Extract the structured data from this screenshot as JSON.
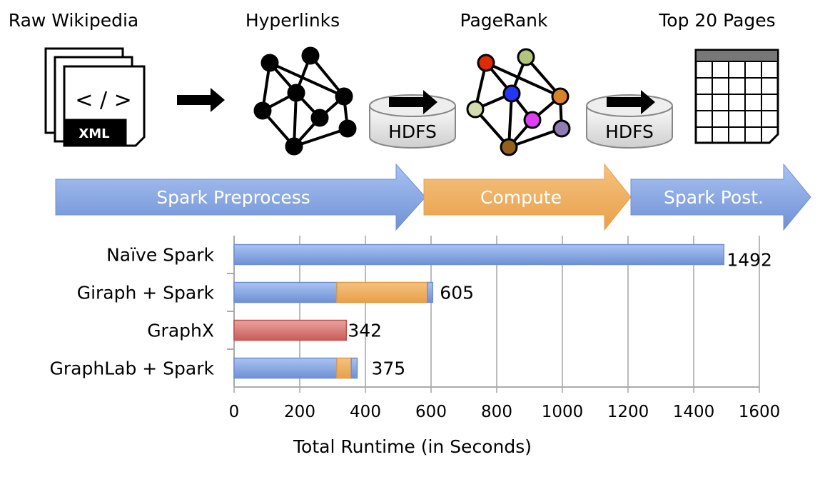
{
  "stages": {
    "raw": {
      "title": "Raw Wikipedia",
      "tag": "XML",
      "code": "< / >"
    },
    "links": {
      "title": "Hyperlinks"
    },
    "pagerank": {
      "title": "PageRank"
    },
    "top": {
      "title": "Top 20 Pages"
    },
    "hdfs1": "HDFS",
    "hdfs2": "HDFS"
  },
  "pipeline": [
    {
      "label": "Spark Preprocess",
      "color": "#7f9fd9"
    },
    {
      "label": "Compute",
      "color": "#eea856"
    },
    {
      "label": "Spark Post.",
      "color": "#7f9fd9"
    }
  ],
  "pagerank_node_colors": [
    "#e02a00",
    "#b3c57a",
    "#2436f8",
    "#d2dcad",
    "#d9822a",
    "#df3ef2",
    "#8f7cb0",
    "#93601d"
  ],
  "chart_data": {
    "type": "bar",
    "stacked": true,
    "orientation": "horizontal",
    "categories": [
      "Naïve Spark",
      "Giraph + Spark",
      "GraphX",
      "GraphLab + Spark"
    ],
    "segments": [
      [
        {
          "value": 1492,
          "color": "#7f9fd9"
        }
      ],
      [
        {
          "value": 313,
          "color": "#7f9fd9"
        },
        {
          "value": 276,
          "color": "#eea856"
        },
        {
          "value": 16,
          "color": "#7f9fd9"
        }
      ],
      [
        {
          "value": 342,
          "color": "#d56a66"
        }
      ],
      [
        {
          "value": 313,
          "color": "#7f9fd9"
        },
        {
          "value": 44,
          "color": "#eea856"
        },
        {
          "value": 18,
          "color": "#7f9fd9"
        }
      ]
    ],
    "totals": [
      "1492",
      "605",
      "342",
      "375"
    ],
    "xlabel": "Total Runtime (in Seconds)",
    "xlim": [
      0,
      1600
    ],
    "xticks": [
      "0",
      "200",
      "400",
      "600",
      "800",
      "1000",
      "1200",
      "1400",
      "1600"
    ],
    "grid": "vertical"
  }
}
